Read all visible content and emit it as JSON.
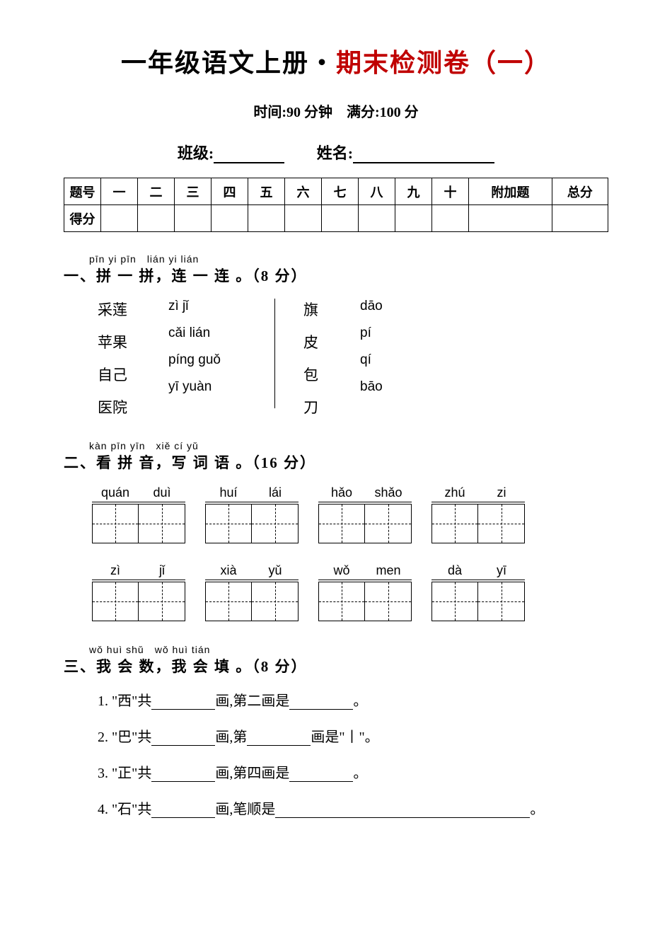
{
  "title": {
    "black": "一年级语文上册・",
    "red": "期末检测卷（一）"
  },
  "subtitle": "时间:90 分钟　满分:100 分",
  "fields": {
    "class": "班级:",
    "name": "姓名:"
  },
  "score_table": {
    "row1": [
      "题号",
      "一",
      "二",
      "三",
      "四",
      "五",
      "六",
      "七",
      "八",
      "九",
      "十",
      "附加题",
      "总分"
    ],
    "row2_label": "得分"
  },
  "q1": {
    "pinyin": "pīn yi pīn　lián yi lián",
    "title": "一、拼 一 拼，连 一 连 。（8 分）",
    "left_hz": [
      "采莲",
      "苹果",
      "自己",
      "医院"
    ],
    "left_py": [
      "zì jǐ",
      "cǎi lián",
      "píng guǒ",
      "yī yuàn"
    ],
    "right_hz": [
      "旗",
      "皮",
      "包",
      "刀"
    ],
    "right_py": [
      "dāo",
      "pí",
      "qí",
      "bāo"
    ]
  },
  "q2": {
    "pinyin": "kàn pīn yīn　xiě cí yǔ",
    "title": "二、看 拼 音，写 词 语 。（16 分）",
    "row1": [
      [
        "quán",
        "duì"
      ],
      [
        "huí",
        "lái"
      ],
      [
        "hǎo",
        "shǎo"
      ],
      [
        "zhú",
        "zi"
      ]
    ],
    "row2": [
      [
        "zì",
        "jǐ"
      ],
      [
        "xià",
        "yǔ"
      ],
      [
        "wǒ",
        "men"
      ],
      [
        "dà",
        "yī"
      ]
    ]
  },
  "q3": {
    "pinyin": "wǒ huì shǔ　wǒ huì tián",
    "title": "三、我 会 数，我 会 填 。（8 分）",
    "items": {
      "i1a": "1. \"西\"共",
      "i1b": "画,第二画是",
      "i1c": "。",
      "i2a": "2. \"巴\"共",
      "i2b": "画,第",
      "i2c": "画是\"丨\"。",
      "i3a": "3. \"正\"共",
      "i3b": "画,第四画是",
      "i3c": "。",
      "i4a": "4. \"石\"共",
      "i4b": "画,笔顺是",
      "i4c": "。"
    }
  },
  "colors": {
    "text": "#000000",
    "accent": "#c00000",
    "bg": "#ffffff"
  }
}
